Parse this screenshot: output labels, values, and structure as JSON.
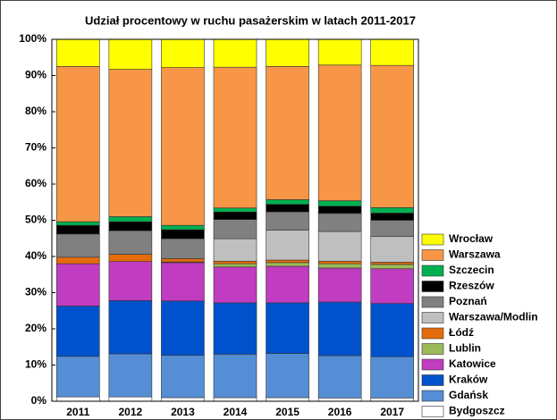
{
  "chart_data": {
    "type": "stacked_bar_100",
    "title": "Udział procentowy w ruchu pasażerskim w latach 2011-2017",
    "categories": [
      "2011",
      "2012",
      "2013",
      "2014",
      "2015",
      "2016",
      "2017"
    ],
    "series": [
      {
        "name": "Bydgoszcz",
        "color": "#ffffff",
        "values": [
          1.2,
          1.2,
          1.0,
          1.0,
          1.0,
          0.9,
          0.9
        ]
      },
      {
        "name": "Gdańsk",
        "color": "#558ed5",
        "values": [
          11.2,
          11.9,
          11.7,
          12.0,
          12.2,
          11.7,
          11.4
        ]
      },
      {
        "name": "Kraków",
        "color": "#0052cc",
        "values": [
          13.9,
          14.7,
          15.0,
          14.2,
          14.0,
          14.8,
          14.7
        ]
      },
      {
        "name": "Katowice",
        "color": "#c03cc0",
        "values": [
          11.7,
          10.8,
          10.6,
          9.9,
          10.1,
          9.4,
          9.6
        ]
      },
      {
        "name": "Lublin",
        "color": "#9bbb59",
        "values": [
          0,
          0,
          0.2,
          0.9,
          1.0,
          1.2,
          1.2
        ]
      },
      {
        "name": "Łódź",
        "color": "#e46c0a",
        "values": [
          1.8,
          2.0,
          0.9,
          0.7,
          0.7,
          0.7,
          0.6
        ]
      },
      {
        "name": "Warszawa/Modlin",
        "color": "#bfbfbf",
        "values": [
          0,
          0,
          0,
          6.2,
          8.3,
          8.2,
          7.1
        ]
      },
      {
        "name": "Poznań",
        "color": "#808080",
        "values": [
          6.4,
          6.5,
          5.5,
          5.3,
          5.0,
          5.0,
          4.5
        ]
      },
      {
        "name": "Rzeszów",
        "color": "#000000",
        "values": [
          2.4,
          2.5,
          2.5,
          2.1,
          2.1,
          2.0,
          2.0
        ]
      },
      {
        "name": "Szczecin",
        "color": "#00b050",
        "values": [
          1.0,
          1.4,
          1.2,
          1.1,
          1.3,
          1.5,
          1.5
        ]
      },
      {
        "name": "Warszawa",
        "color": "#f79646",
        "values": [
          42.9,
          40.7,
          43.6,
          38.9,
          36.8,
          37.5,
          39.3
        ]
      },
      {
        "name": "Wrocław",
        "color": "#ffff00",
        "values": [
          7.5,
          8.3,
          7.8,
          7.7,
          7.5,
          7.1,
          7.2
        ]
      }
    ],
    "ylim": [
      0,
      100
    ],
    "yticks": [
      {
        "value": 0,
        "label": "0%"
      },
      {
        "value": 10,
        "label": "10%"
      },
      {
        "value": 20,
        "label": "20%"
      },
      {
        "value": 30,
        "label": "30%"
      },
      {
        "value": 40,
        "label": "40%"
      },
      {
        "value": 50,
        "label": "50%"
      },
      {
        "value": 60,
        "label": "60%"
      },
      {
        "value": 70,
        "label": "70%"
      },
      {
        "value": 80,
        "label": "80%"
      },
      {
        "value": 90,
        "label": "90%"
      },
      {
        "value": 100,
        "label": "100%"
      }
    ],
    "grid": false,
    "legend": "right"
  }
}
